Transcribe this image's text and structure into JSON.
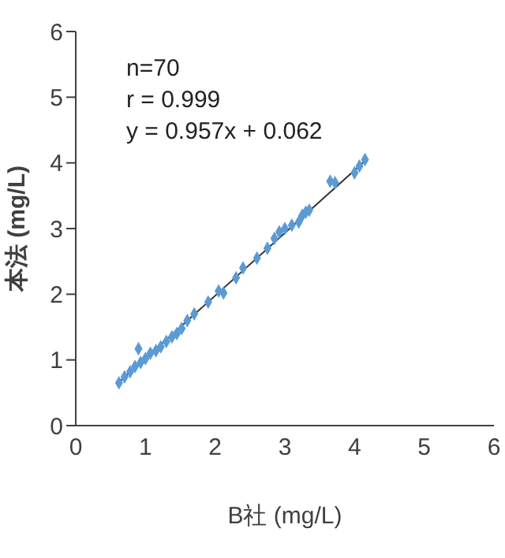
{
  "chart_data": {
    "type": "scatter",
    "xlabel": "B社 (mg/L)",
    "ylabel": "本法 (mg/L)",
    "annotations": [
      "n=70",
      "r = 0.999",
      "y = 0.957x + 0.062"
    ],
    "xlim": [
      0,
      6
    ],
    "ylim": [
      0,
      6
    ],
    "xticks": [
      0,
      1,
      2,
      3,
      4,
      5,
      6
    ],
    "yticks": [
      0,
      1,
      2,
      3,
      4,
      5,
      6
    ],
    "series": [
      {
        "color": "#5b9bd5",
        "marker": "diamond",
        "x": [
          0.62,
          0.7,
          0.78,
          0.85,
          0.9,
          0.93,
          1.0,
          1.07,
          1.15,
          1.22,
          1.3,
          1.38,
          1.45,
          1.52,
          1.6,
          1.7,
          1.9,
          2.05,
          2.12,
          2.3,
          2.4,
          2.6,
          2.75,
          2.85,
          2.92,
          3.0,
          3.1,
          3.2,
          3.25,
          3.3,
          3.35,
          3.65,
          3.72,
          4.0,
          4.07,
          4.15
        ],
        "values": [
          0.65,
          0.74,
          0.82,
          0.9,
          1.17,
          0.96,
          1.02,
          1.1,
          1.14,
          1.2,
          1.28,
          1.35,
          1.4,
          1.48,
          1.6,
          1.7,
          1.88,
          2.05,
          2.02,
          2.25,
          2.4,
          2.55,
          2.7,
          2.85,
          2.95,
          3.0,
          3.05,
          3.1,
          3.2,
          3.25,
          3.28,
          3.72,
          3.7,
          3.85,
          3.95,
          4.05
        ]
      },
      {
        "type": "line",
        "marker": "none",
        "color": "#333333",
        "x": [
          0.62,
          4.18
        ],
        "values": [
          0.66,
          4.06
        ]
      }
    ]
  }
}
